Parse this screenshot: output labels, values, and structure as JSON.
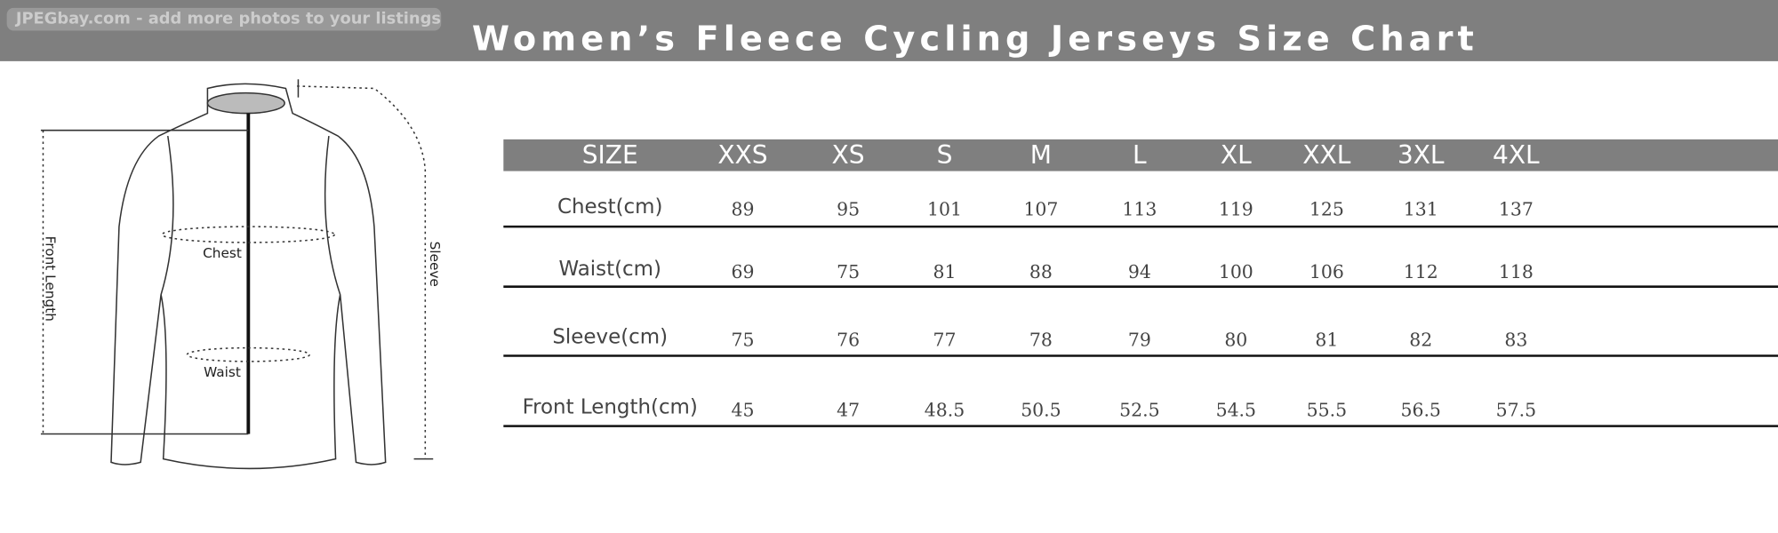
{
  "watermark": "JPEGbay.com - add more photos to your listings",
  "title": "Women’s Fleece Cycling Jerseys Size Chart",
  "diagram": {
    "labels": {
      "chest": "Chest",
      "waist": "Waist",
      "front_length": "Front Length",
      "sleeve": "Sleeve"
    }
  },
  "table": {
    "header": [
      "SIZE",
      "XXS",
      "XS",
      "S",
      "M",
      "L",
      "XL",
      "XXL",
      "3XL",
      "4XL"
    ],
    "rows": [
      [
        "Chest(cm)",
        89,
        95,
        101,
        107,
        113,
        119,
        125,
        131,
        137
      ],
      [
        "Waist(cm)",
        69,
        75,
        81,
        88,
        94,
        100,
        106,
        112,
        118
      ],
      [
        "Sleeve(cm)",
        75,
        76,
        77,
        78,
        79,
        80,
        81,
        82,
        83
      ],
      [
        "Front Length(cm)",
        45,
        47,
        48.5,
        50.5,
        52.5,
        54.5,
        55.5,
        56.5,
        57.5
      ]
    ]
  }
}
